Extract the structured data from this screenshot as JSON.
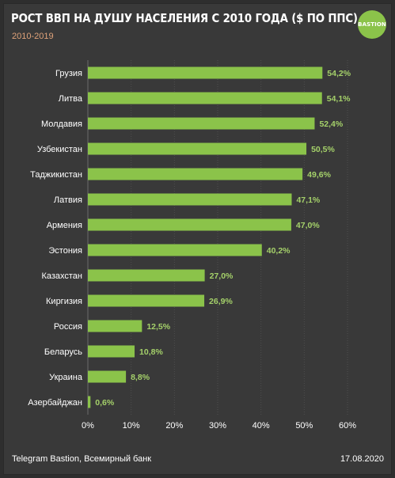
{
  "header": {
    "title": "РОСТ ВВП НА ДУШУ НАСЕЛЕНИЯ С 2010 ГОДА ($ ПО ППС)",
    "subtitle": "2010-2019",
    "logo_text": "BASTION"
  },
  "footer": {
    "source": "Telegram Bastion, Всемирный банк",
    "date": "17.08.2020"
  },
  "colors": {
    "background": "#393939",
    "bar": "#8bc34a",
    "value_label": "#a5d16a",
    "text": "#ffffff",
    "subtitle": "#e0a37a"
  },
  "chart_data": {
    "type": "bar",
    "orientation": "horizontal",
    "categories": [
      "Грузия",
      "Литва",
      "Молдавия",
      "Узбекистан",
      "Таджикистан",
      "Латвия",
      "Армения",
      "Эстония",
      "Казахстан",
      "Киргизия",
      "Россия",
      "Беларусь",
      "Украина",
      "Азербайджан"
    ],
    "values": [
      54.2,
      54.1,
      52.4,
      50.5,
      49.6,
      47.1,
      47.0,
      40.2,
      27.0,
      26.9,
      12.5,
      10.8,
      8.8,
      0.6
    ],
    "value_labels": [
      "54,2%",
      "54,1%",
      "52,4%",
      "50,5%",
      "49,6%",
      "47,1%",
      "47,0%",
      "40,2%",
      "27,0%",
      "26,9%",
      "12,5%",
      "10,8%",
      "8,8%",
      "0,6%"
    ],
    "xlim": [
      0,
      60
    ],
    "xticks": [
      "0%",
      "10%",
      "20%",
      "30%",
      "40%",
      "50%",
      "60%"
    ],
    "grid": true
  }
}
